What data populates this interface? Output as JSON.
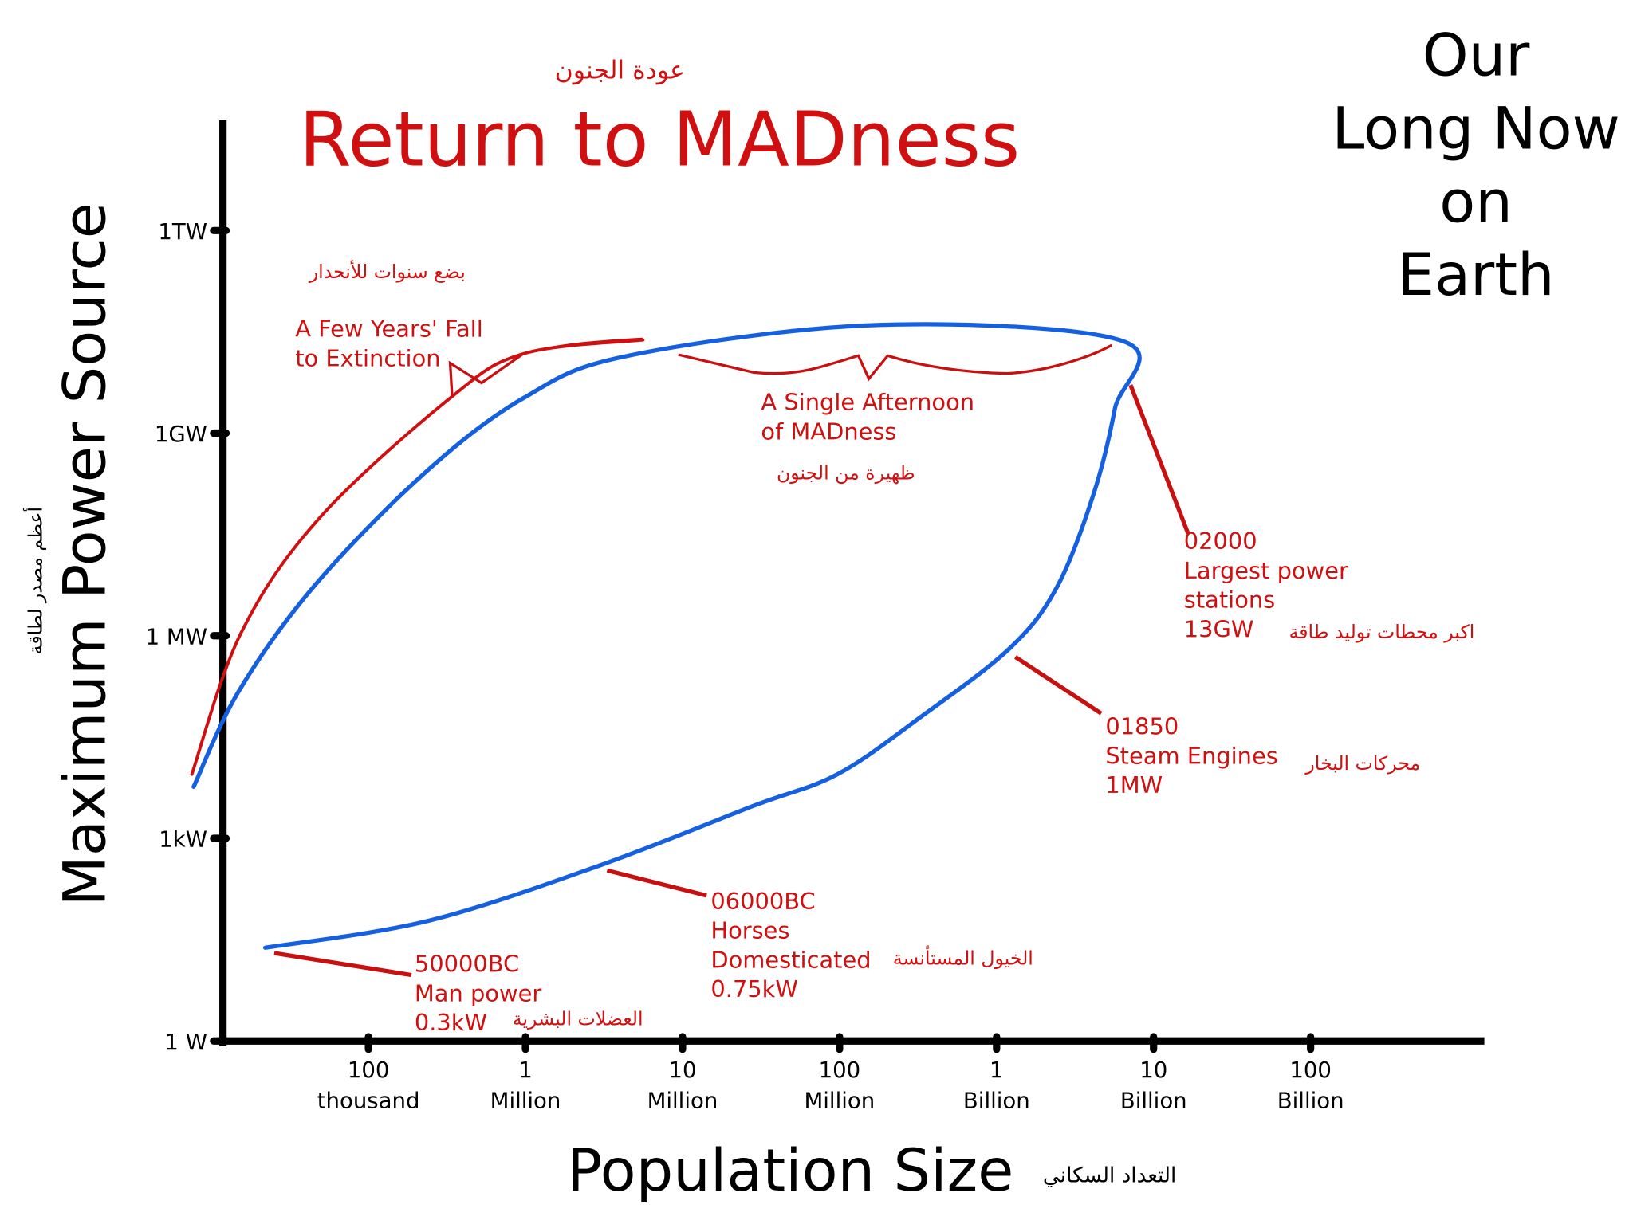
{
  "chart_data": {
    "type": "line",
    "subtitle": "عودة الجنون",
    "title": "Return to MADness",
    "corner_text": [
      "Our",
      "Long Now",
      "on",
      "Earth"
    ],
    "y_label": "Maximum Power Source",
    "y_label_ar": "أعظم مصدر لطاقة",
    "x_label": "Population Size",
    "x_label_ar": "التعداد السكاني",
    "log_x": true,
    "log_y": true,
    "xlim": [
      10000,
      1000000000000
    ],
    "ylim": [
      1,
      30000000000000
    ],
    "xticks": [
      {
        "value": 100000,
        "label": "100 thousand"
      },
      {
        "value": 1000000,
        "label": "1 Million"
      },
      {
        "value": 10000000,
        "label": "10 Million"
      },
      {
        "value": 100000000,
        "label": "100 Million"
      },
      {
        "value": 1000000000,
        "label": "1 Billion"
      },
      {
        "value": 10000000000,
        "label": "10 Billion"
      },
      {
        "value": 100000000000,
        "label": "100 Billion"
      }
    ],
    "yticks": [
      {
        "value": 1,
        "label": "1 W"
      },
      {
        "value": 1000,
        "label": "1kW"
      },
      {
        "value": 1000000,
        "label": "1 MW"
      },
      {
        "value": 1000000000,
        "label": "1GW"
      },
      {
        "value": 1000000000000,
        "label": "1TW"
      }
    ],
    "series": [
      {
        "color": "#1560e0",
        "x": [
          22000,
          240000,
          3000000,
          28000000,
          97000000,
          330000000,
          1220000000,
          2440000000,
          4170000000,
          5670000000,
          6400000000,
          179000000,
          4500000,
          970000,
          225000,
          45000,
          14900,
          7700
        ],
        "values": [
          24,
          60,
          400,
          3000,
          8900,
          63000,
          660000,
          5400000,
          130000000,
          2300000000,
          23000000000,
          40000000000,
          14000000000,
          3300000000,
          250000000,
          5400000,
          150000,
          5800
        ]
      },
      {
        "color": "#d01010",
        "x": [
          7500,
          15400,
          48600,
          331000,
          970000,
          5600000
        ],
        "values": [
          8900,
          1090000,
          55000000,
          3300000000,
          15000000000,
          24000000000
        ]
      }
    ],
    "annotations": [
      {
        "lines": [
          "A Few Years' Fall",
          "to Extinction"
        ],
        "arabic": "بضع سنوات للأنحدار"
      },
      {
        "lines": [
          "A Single Afternoon",
          "of MADness"
        ],
        "arabic": "ظهيرة من الجنون"
      },
      {
        "lines": [
          "02000",
          "Largest power",
          "stations",
          "13GW"
        ],
        "arabic": "اكبر محطات توليد طاقة"
      },
      {
        "lines": [
          "01850",
          "Steam Engines",
          "1MW"
        ],
        "arabic": "محركات البخار"
      },
      {
        "lines": [
          "06000BC",
          "Horses",
          "Domesticated",
          "0.75kW"
        ],
        "arabic": "الخيول المستأنسة"
      },
      {
        "lines": [
          "50000BC",
          "Man power",
          "0.3kW"
        ],
        "arabic": "العضلات البشرية"
      }
    ]
  }
}
